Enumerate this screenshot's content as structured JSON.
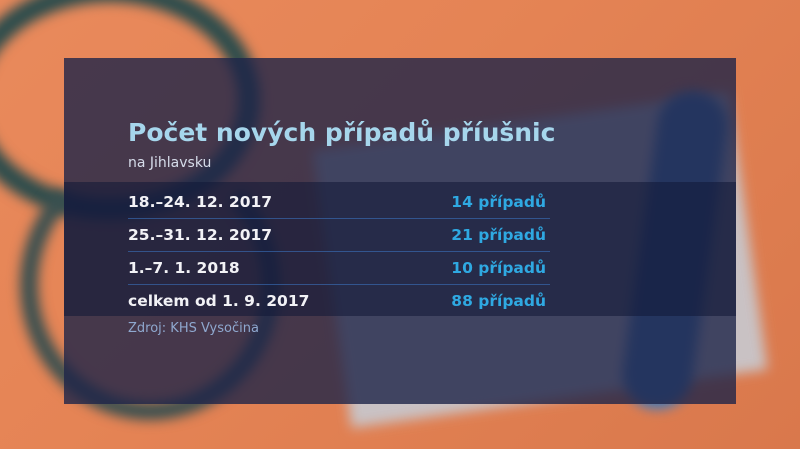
{
  "title": "Počet nových případů příušnic",
  "subtitle": "na Jihlavsku",
  "rows": [
    {
      "label": "18.–24. 12. 2017",
      "value": "14 případů"
    },
    {
      "label": "25.–31. 12. 2017",
      "value": "21 případů"
    },
    {
      "label": "1.–7. 1. 2018",
      "value": "10 případů"
    },
    {
      "label": "celkem od 1. 9. 2017",
      "value": "88 případů"
    }
  ],
  "source": "Zdroj: KHS Vysočina",
  "colors": {
    "title": "#a6d6ec",
    "value": "#2fa9e2",
    "panel": "#1e2448"
  }
}
